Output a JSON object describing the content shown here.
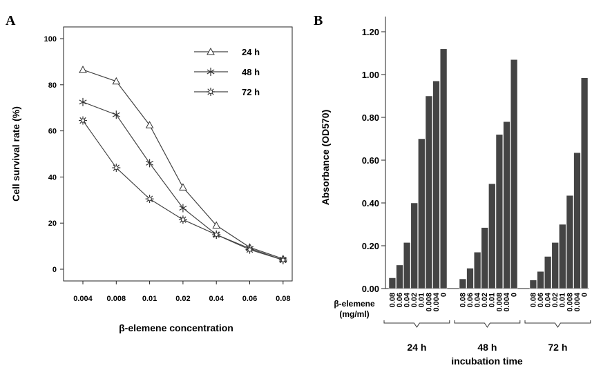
{
  "panels": {
    "a": "A",
    "b": "B"
  },
  "chart_data": [
    {
      "type": "line",
      "panel": "A",
      "categories": [
        "0.004",
        "0.008",
        "0.01",
        "0.02",
        "0.04",
        "0.06",
        "0.08"
      ],
      "series": [
        {
          "name": "24 h",
          "marker": "triangle",
          "values": [
            86.5,
            81.5,
            62.5,
            35.5,
            19.0,
            9.5,
            4.5
          ]
        },
        {
          "name": "48 h",
          "marker": "asterisk",
          "values": [
            72.5,
            67.0,
            46.0,
            26.5,
            15.0,
            9.0,
            4.0
          ]
        },
        {
          "name": "72 h",
          "marker": "star",
          "values": [
            64.5,
            44.0,
            30.5,
            21.5,
            15.0,
            8.5,
            4.0
          ]
        }
      ],
      "xlabel": "β-elemene concentration",
      "ylabel": "Cell survival rate (%)",
      "yticks": [
        "0",
        "20",
        "40",
        "60",
        "80",
        "100"
      ],
      "ylim": [
        -5,
        105
      ],
      "legend_position": "top-right",
      "grid": false
    },
    {
      "type": "bar",
      "panel": "B",
      "groups": [
        {
          "name": "24 h",
          "categories": [
            "0.08",
            "0.06",
            "0.04",
            "0.02",
            "0.01",
            "0.008",
            "0.004",
            "0"
          ],
          "values": [
            0.05,
            0.11,
            0.215,
            0.4,
            0.7,
            0.9,
            0.97,
            1.12
          ]
        },
        {
          "name": "48 h",
          "categories": [
            "0.08",
            "0.06",
            "0.04",
            "0.02",
            "0.01",
            "0.008",
            "0.004",
            "0"
          ],
          "values": [
            0.045,
            0.095,
            0.17,
            0.285,
            0.49,
            0.72,
            0.78,
            1.07
          ]
        },
        {
          "name": "72 h",
          "categories": [
            "0.08",
            "0.06",
            "0.04",
            "0.02",
            "0.01",
            "0.008",
            "0.004",
            "0"
          ],
          "values": [
            0.04,
            0.08,
            0.15,
            0.215,
            0.3,
            0.435,
            0.635,
            0.985
          ]
        }
      ],
      "ylabel": "Absorbance  (OD570)",
      "yticks": [
        "0.00",
        "0.20",
        "0.40",
        "0.60",
        "0.80",
        "1.00",
        "1.20"
      ],
      "ylim": [
        0,
        1.2
      ],
      "category_axis_label": "β-elemene",
      "category_axis_unit": "(mg/ml)",
      "xlabel": "incubation time",
      "bar_color": "#444444",
      "grid": false
    }
  ]
}
